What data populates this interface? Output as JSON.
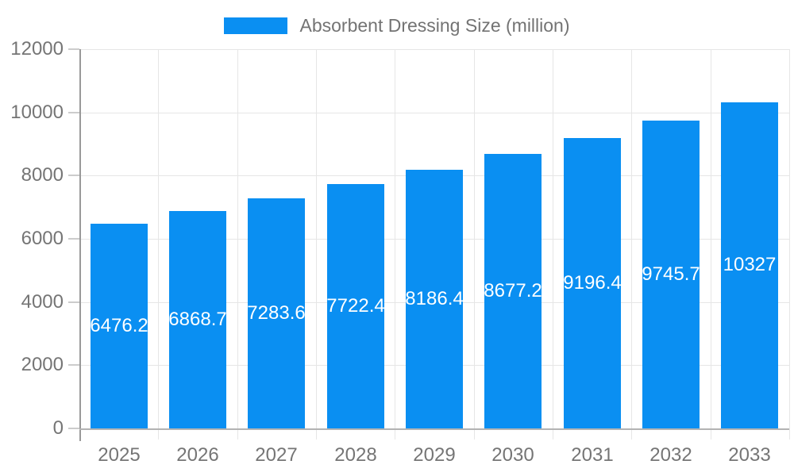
{
  "chart_data": {
    "type": "bar",
    "title": "Absorbent Dressing Size (million)",
    "legend": {
      "position": "top",
      "entries": [
        {
          "label": "Absorbent Dressing Size (million)",
          "color": "#0a8ff2"
        }
      ]
    },
    "categories": [
      "2025",
      "2026",
      "2027",
      "2028",
      "2029",
      "2030",
      "2031",
      "2032",
      "2033"
    ],
    "series": [
      {
        "name": "Absorbent Dressing Size (million)",
        "values": [
          6476.2,
          6868.7,
          7283.6,
          7722.4,
          8186.4,
          8677.2,
          9196.4,
          9745.7,
          10327
        ],
        "value_labels": [
          "6476.2",
          "6868.7",
          "7283.6",
          "7722.4",
          "8186.4",
          "8677.2",
          "9196.4",
          "9745.7",
          "10327"
        ]
      }
    ],
    "xlabel": "",
    "ylabel": "",
    "ylim": [
      0,
      12000
    ],
    "y_ticks": [
      0,
      2000,
      4000,
      6000,
      8000,
      10000,
      12000
    ],
    "y_tick_labels": [
      "0",
      "2000",
      "4000",
      "6000",
      "8000",
      "10000",
      "12000"
    ],
    "grid": true,
    "colors": {
      "bar": "#0a8ff2",
      "axis_text": "#757575",
      "legend_text": "#737373",
      "grid_line": "#e6e6e6",
      "y_axis_line": "#999999",
      "x_axis_line": "#b3b3b3",
      "tick": "#cccccc",
      "value_label": "#ffffff",
      "background": "#ffffff"
    }
  }
}
